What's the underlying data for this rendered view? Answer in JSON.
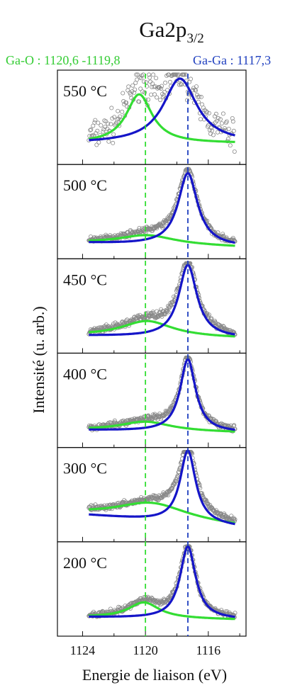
{
  "chart_data": {
    "type": "line",
    "title_main": "Ga2p",
    "title_sub": "3/2",
    "xlabel": "Energie de liaison (eV)",
    "ylabel": "Intensité (u. arb.)",
    "x_reversed": true,
    "xlim": [
      1125.6,
      1113.6
    ],
    "xticks": [
      1124,
      1120,
      1116
    ],
    "grid": false,
    "legend_position": "top",
    "reference_lines": [
      {
        "label": "Ga-O : 1120,6 -1119,8",
        "x": 1120.0,
        "color": "#33dd33",
        "style": "dashed"
      },
      {
        "label": "Ga-Ga : 1117,3",
        "x": 1117.3,
        "color": "#1f3fbf",
        "style": "dashed"
      }
    ],
    "colors": {
      "ga_o": "#33dd33",
      "ga_ga": "#1515c8",
      "data_points": "#777777"
    },
    "panels": [
      {
        "label": "550 °C",
        "ga_ga": {
          "center": 1117.8,
          "height": 0.82,
          "width": 1.3
        },
        "ga_o": {
          "center": 1120.4,
          "height": 0.62,
          "width": 1.0
        },
        "baseline": 0.18,
        "slope": 0.0,
        "noise": 0.11
      },
      {
        "label": "500 °C",
        "ga_ga": {
          "center": 1117.3,
          "height": 0.92,
          "width": 0.75
        },
        "ga_o": {
          "center": 1119.9,
          "height": 0.12,
          "width": 2.2
        },
        "baseline": 0.06,
        "slope": 0.05,
        "noise": 0.02
      },
      {
        "label": "450 °C",
        "ga_ga": {
          "center": 1117.3,
          "height": 0.92,
          "width": 0.7
        },
        "ga_o": {
          "center": 1119.9,
          "height": 0.2,
          "width": 2.0
        },
        "baseline": 0.1,
        "slope": 0.03,
        "noise": 0.025
      },
      {
        "label": "400 °C",
        "ga_ga": {
          "center": 1117.3,
          "height": 0.92,
          "width": 0.6
        },
        "ga_o": {
          "center": 1120.0,
          "height": 0.12,
          "width": 2.0
        },
        "baseline": 0.1,
        "slope": 0.03,
        "noise": 0.02
      },
      {
        "label": "300 °C",
        "ga_ga": {
          "center": 1117.3,
          "height": 0.92,
          "width": 0.6
        },
        "ga_o": {
          "center": 1119.6,
          "height": 0.22,
          "width": 2.8
        },
        "baseline": 0.1,
        "slope": 0.15,
        "noise": 0.02
      },
      {
        "label": "200 °C",
        "ga_ga": {
          "center": 1117.3,
          "height": 0.92,
          "width": 0.6
        },
        "ga_o": {
          "center": 1120.1,
          "height": 0.2,
          "width": 1.2
        },
        "baseline": 0.12,
        "slope": 0.03,
        "noise": 0.02
      }
    ]
  }
}
